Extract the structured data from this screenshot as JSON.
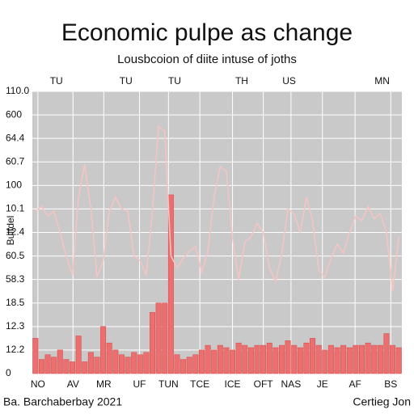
{
  "chart_data": {
    "type": "bar_line",
    "title": "Economic pulpe as change",
    "subtitle": "Lousbcoion of diite intuse of joths",
    "y_label": "Bulfdel",
    "source": "Ba. Barchaberbay 2021",
    "credit": "Certieg Jon",
    "x": [
      0,
      1,
      2,
      3,
      4,
      5,
      6,
      7,
      8,
      9,
      10,
      11,
      12,
      13,
      14,
      15,
      16,
      17,
      18,
      19,
      20,
      21,
      22,
      23,
      24,
      25,
      26,
      27,
      28,
      29,
      30,
      31,
      32,
      33,
      34,
      35,
      36,
      37,
      38,
      39,
      40,
      41,
      42,
      43,
      44,
      45,
      46,
      47,
      48,
      49,
      50,
      51,
      52,
      53,
      54,
      55,
      56,
      57,
      58,
      59
    ],
    "xlim": [
      -0.5,
      59.5
    ],
    "xticks": [
      {
        "value": 0.4,
        "label": "NO"
      },
      {
        "value": 6.1,
        "label": "AV"
      },
      {
        "value": 11.1,
        "label": "MR"
      },
      {
        "value": 16.9,
        "label": "UF"
      },
      {
        "value": 21.6,
        "label": "TUN"
      },
      {
        "value": 26.7,
        "label": "TCE"
      },
      {
        "value": 32.0,
        "label": "ICE"
      },
      {
        "value": 37.0,
        "label": "OFT"
      },
      {
        "value": 41.5,
        "label": "NAS"
      },
      {
        "value": 46.6,
        "label": "JE"
      },
      {
        "value": 51.9,
        "label": "AF"
      },
      {
        "value": 57.7,
        "label": "BS"
      }
    ],
    "top_ticks": [
      {
        "value": 3.4,
        "label": "TU"
      },
      {
        "value": 14.7,
        "label": "TU"
      },
      {
        "value": 22.6,
        "label": "TU"
      },
      {
        "value": 33.5,
        "label": "TH"
      },
      {
        "value": 41.2,
        "label": "US"
      },
      {
        "value": 56.3,
        "label": "MN"
      }
    ],
    "ylim": [
      0,
      12
    ],
    "yticks": [
      0,
      {
        "value": 1,
        "label": "12.2"
      },
      {
        "value": 2,
        "label": "12.3"
      },
      {
        "value": 3,
        "label": "18.5"
      },
      {
        "value": 4,
        "label": "58.3"
      },
      {
        "value": 5,
        "label": "60.5"
      },
      {
        "value": 6,
        "label": "12.4"
      },
      {
        "value": 7,
        "label": "10.1"
      },
      {
        "value": 8,
        "label": "100"
      },
      {
        "value": 9,
        "label": "60.7"
      },
      {
        "value": 10,
        "label": "64.4"
      },
      {
        "value": 11,
        "label": "600"
      },
      {
        "value": 12,
        "label": "110.0"
      }
    ],
    "grid": true,
    "background": "#c9c9c9",
    "series": [
      {
        "kind": "bar",
        "color": "#ec6f6f",
        "values": [
          1.5,
          0.6,
          0.8,
          0.7,
          1.0,
          0.6,
          0.5,
          1.6,
          0.5,
          0.9,
          0.7,
          2.0,
          1.3,
          1.0,
          0.8,
          0.7,
          0.9,
          0.8,
          0.9,
          2.6,
          3.0,
          3.0,
          7.6,
          0.8,
          0.6,
          0.7,
          0.8,
          1.0,
          1.2,
          1.0,
          1.2,
          1.1,
          1.0,
          1.3,
          1.2,
          1.1,
          1.2,
          1.2,
          1.3,
          1.1,
          1.2,
          1.4,
          1.2,
          1.1,
          1.3,
          1.5,
          1.2,
          1.0,
          1.2,
          1.1,
          1.2,
          1.1,
          1.2,
          1.2,
          1.3,
          1.2,
          1.2,
          1.7,
          1.2,
          1.1
        ]
      },
      {
        "kind": "line",
        "color": "#f5c4c4",
        "values": [
          6.9,
          7.1,
          6.7,
          6.9,
          6.0,
          5.0,
          4.2,
          7.5,
          8.9,
          7.0,
          4.1,
          4.8,
          6.9,
          7.5,
          7.0,
          6.9,
          5.0,
          4.8,
          4.2,
          6.9,
          10.5,
          10.3,
          5.0,
          4.5,
          4.9,
          5.2,
          5.4,
          4.3,
          5.2,
          7.5,
          8.8,
          8.6,
          5.8,
          4.0,
          5.6,
          5.8,
          6.4,
          6.0,
          4.5,
          3.9,
          5.1,
          7.0,
          6.8,
          6.0,
          7.5,
          6.5,
          4.4,
          4.1,
          4.9,
          5.5,
          5.1,
          6.0,
          6.7,
          6.5,
          7.1,
          6.6,
          6.8,
          6.0,
          3.5,
          5.8
        ]
      }
    ]
  }
}
